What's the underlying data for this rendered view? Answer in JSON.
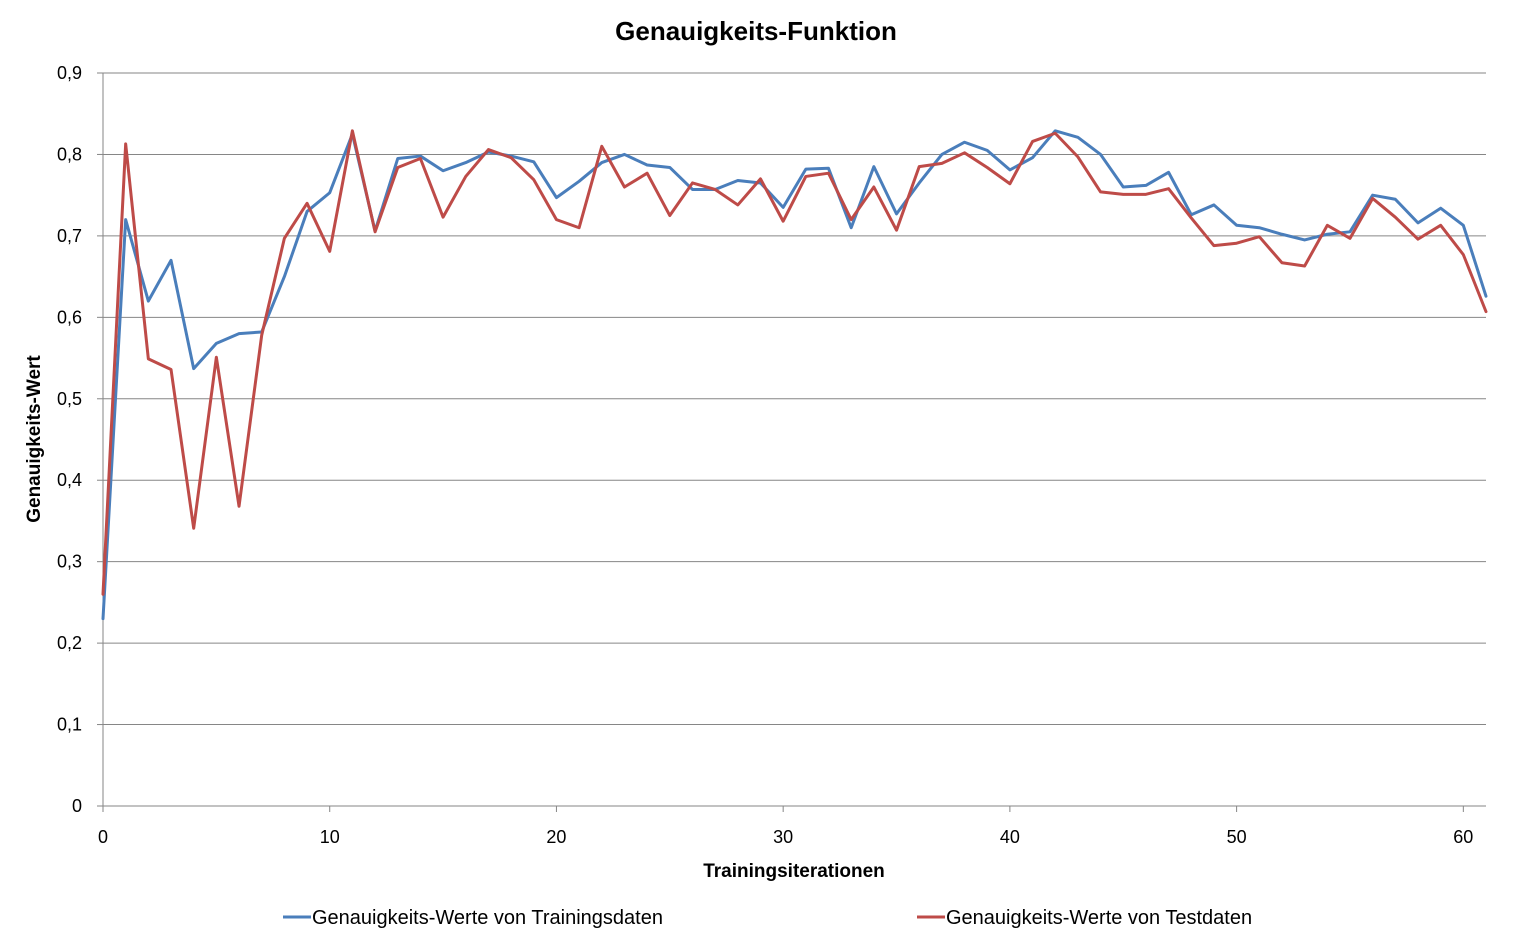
{
  "chart_data": {
    "type": "line",
    "title": "Genauigkeits-Funktion",
    "xlabel": "Trainingsiterationen",
    "ylabel": "Genauigkeits-Wert",
    "xlim": [
      0,
      61
    ],
    "ylim": [
      0,
      0.9
    ],
    "x_ticks": [
      0,
      10,
      20,
      30,
      40,
      50,
      60
    ],
    "x_tick_labels": [
      "0",
      "10",
      "20",
      "30",
      "40",
      "50",
      "60"
    ],
    "y_ticks": [
      0,
      0.1,
      0.2,
      0.3,
      0.4,
      0.5,
      0.6,
      0.7,
      0.8,
      0.9
    ],
    "y_tick_labels": [
      "0",
      "0,1",
      "0,2",
      "0,3",
      "0,4",
      "0,5",
      "0,6",
      "0,7",
      "0,8",
      "0,9"
    ],
    "grid": "horizontal",
    "legend_position": "bottom",
    "x": [
      0,
      1,
      2,
      3,
      4,
      5,
      6,
      7,
      8,
      9,
      10,
      11,
      12,
      13,
      14,
      15,
      16,
      17,
      18,
      19,
      20,
      21,
      22,
      23,
      24,
      25,
      26,
      27,
      28,
      29,
      30,
      31,
      32,
      33,
      34,
      35,
      36,
      37,
      38,
      39,
      40,
      41,
      42,
      43,
      44,
      45,
      46,
      47,
      48,
      49,
      50,
      51,
      52,
      53,
      54,
      55,
      56,
      57,
      58,
      59,
      60,
      61
    ],
    "series": [
      {
        "name": "Genauigkeits-Werte von Trainingsdaten",
        "color": "#4a7ebb",
        "values": [
          0.23,
          0.72,
          0.62,
          0.67,
          0.537,
          0.568,
          0.58,
          0.582,
          0.65,
          0.73,
          0.753,
          0.825,
          0.706,
          0.795,
          0.798,
          0.78,
          0.79,
          0.803,
          0.798,
          0.791,
          0.747,
          0.767,
          0.79,
          0.8,
          0.787,
          0.784,
          0.757,
          0.757,
          0.768,
          0.765,
          0.735,
          0.782,
          0.783,
          0.71,
          0.785,
          0.727,
          0.765,
          0.8,
          0.815,
          0.805,
          0.781,
          0.796,
          0.829,
          0.821,
          0.8,
          0.76,
          0.762,
          0.778,
          0.726,
          0.738,
          0.713,
          0.71,
          0.702,
          0.695,
          0.702,
          0.705,
          0.75,
          0.745,
          0.716,
          0.734,
          0.713,
          0.626
        ]
      },
      {
        "name": "Genauigkeits-Werte von Testdaten",
        "color": "#be4b48",
        "values": [
          0.26,
          0.813,
          0.549,
          0.536,
          0.341,
          0.551,
          0.368,
          0.578,
          0.697,
          0.74,
          0.681,
          0.829,
          0.705,
          0.784,
          0.795,
          0.723,
          0.773,
          0.806,
          0.796,
          0.769,
          0.72,
          0.71,
          0.81,
          0.76,
          0.777,
          0.725,
          0.765,
          0.757,
          0.738,
          0.77,
          0.718,
          0.773,
          0.777,
          0.72,
          0.76,
          0.707,
          0.785,
          0.789,
          0.802,
          0.784,
          0.764,
          0.816,
          0.826,
          0.797,
          0.754,
          0.751,
          0.751,
          0.758,
          0.722,
          0.688,
          0.691,
          0.699,
          0.667,
          0.663,
          0.713,
          0.697,
          0.746,
          0.723,
          0.696,
          0.713,
          0.677,
          0.607
        ]
      }
    ]
  }
}
